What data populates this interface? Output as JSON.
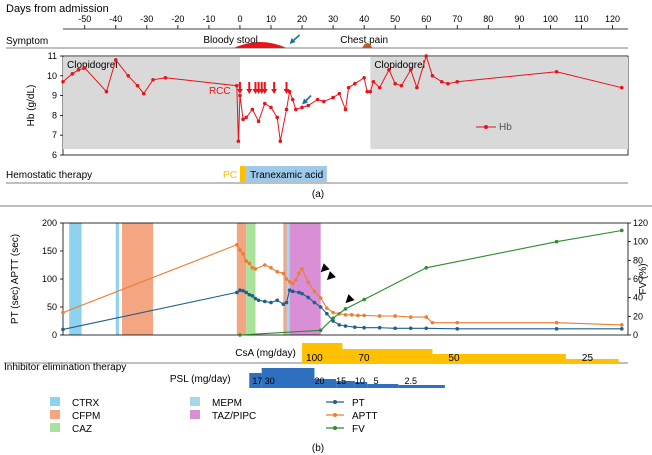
{
  "figure": {
    "top_header": "Days from admission",
    "caption_a": "(a)",
    "caption_b": "(b)"
  },
  "colors": {
    "hb": "#e8141a",
    "hb_shade": "#d9d9d9",
    "pt": "#1f5f8b",
    "aptt": "#ed7d31",
    "fv": "#2e8b2e",
    "ctrx": "#8dd3f0",
    "cfpm": "#f4a582",
    "meppm": "#a6d5ec",
    "caz": "#a8e29b",
    "taz": "#d98fd6",
    "csa": "#ffc000",
    "psl": "#2f6fbf",
    "pc": "#ffc000",
    "txa": "#9ec9ea",
    "arrow": "#1f6fa0",
    "black": "#000000"
  },
  "chart_data": [
    {
      "panel": "a",
      "type": "line",
      "x_axis": {
        "label": "Days from admission",
        "range": [
          -57,
          125
        ],
        "ticks": [
          -50,
          -40,
          -30,
          -20,
          -10,
          0,
          10,
          20,
          30,
          40,
          50,
          60,
          70,
          80,
          90,
          100,
          110,
          120
        ]
      },
      "y_axis": {
        "label": "Hb (g/dL)",
        "range": [
          6,
          11
        ],
        "ticks": [
          6,
          7,
          8,
          9,
          10,
          11
        ]
      },
      "grid": false,
      "symptom_row": {
        "label": "Symptom",
        "events": [
          {
            "text": "Bloody stool",
            "start": -2,
            "end": 15
          },
          {
            "text": "Chest pain",
            "start": 40,
            "end": 42
          }
        ]
      },
      "shaded_regions": [
        {
          "label": "Clopidogrel",
          "start": -57,
          "end": 0
        },
        {
          "label": "Clopidogrel",
          "start": 42,
          "end": 125
        }
      ],
      "rcc_label": "RCC",
      "rcc_days": [
        0,
        3,
        5,
        6,
        7,
        8,
        11,
        15
      ],
      "annotation_arrows": [
        {
          "x": 16,
          "target": "bleeding"
        },
        {
          "x": 20,
          "y": 8.5
        }
      ],
      "series": [
        {
          "name": "Hb",
          "x": [
            -57,
            -54,
            -52,
            -50,
            -43,
            -40,
            -36,
            -33,
            -31,
            -28,
            -24,
            -1,
            -0.5,
            0,
            1,
            2,
            4,
            6,
            8,
            10,
            12,
            13,
            15,
            16,
            17,
            18,
            20,
            22,
            25,
            27,
            30,
            32,
            34,
            35,
            37,
            40,
            41,
            42,
            43,
            45,
            48,
            50,
            52,
            55,
            57,
            60,
            62,
            65,
            67,
            70,
            102,
            123
          ],
          "y": [
            9.7,
            10.1,
            10.3,
            10.4,
            9.2,
            10.8,
            10.0,
            9.5,
            9.1,
            9.8,
            9.9,
            9.5,
            6.7,
            9.0,
            7.8,
            7.9,
            8.3,
            7.7,
            8.6,
            8.4,
            7.9,
            6.7,
            8.3,
            9.2,
            8.8,
            8.3,
            8.4,
            8.5,
            8.8,
            8.7,
            8.9,
            9.1,
            8.3,
            9.4,
            9.6,
            9.9,
            9.2,
            9.2,
            9.7,
            9.4,
            10.3,
            9.6,
            9.5,
            10.3,
            9.4,
            11.0,
            10.0,
            9.7,
            9.6,
            9.7,
            10.2,
            9.4
          ]
        }
      ],
      "legend": {
        "entries": [
          "Hb"
        ],
        "placement": "inside-right"
      },
      "therapy_row": {
        "label": "Hemostatic therapy",
        "items": [
          {
            "text": "PC",
            "start": 0,
            "end": 2
          },
          {
            "text": "Tranexamic acid",
            "start": 2,
            "end": 28
          }
        ]
      }
    },
    {
      "panel": "b",
      "type": "line",
      "x_axis": {
        "range": [
          -57,
          125
        ]
      },
      "y_axis_left": {
        "label": "PT (sec) APTT (sec)",
        "range": [
          0,
          200
        ],
        "ticks": [
          0,
          50,
          100,
          150,
          200
        ]
      },
      "y_axis_right": {
        "label": "FV (%)",
        "range": [
          0,
          120
        ],
        "ticks": [
          0,
          20,
          40,
          60,
          80,
          100,
          120
        ]
      },
      "grid": false,
      "antibiotic_bars": [
        {
          "name": "CTRX",
          "start": -55,
          "end": -51
        },
        {
          "name": "CTRX",
          "start": -40,
          "end": -39
        },
        {
          "name": "CFPM",
          "start": -38,
          "end": -28
        },
        {
          "name": "CFPM",
          "start": -1,
          "end": 2
        },
        {
          "name": "CAZ",
          "start": 2,
          "end": 5
        },
        {
          "name": "CFPM",
          "start": 14,
          "end": 15
        },
        {
          "name": "MEPM",
          "start": 15,
          "end": 16
        },
        {
          "name": "TAZ/PIPC",
          "start": 16,
          "end": 26
        }
      ],
      "annotation_arrowheads": [
        {
          "x": 26,
          "y": 112
        },
        {
          "x": 28,
          "y": 98
        },
        {
          "x": 34,
          "y": 57
        }
      ],
      "series": [
        {
          "name": "PT",
          "axis": "left",
          "x": [
            -57,
            -1,
            0,
            1,
            2,
            3,
            4,
            5,
            6,
            8,
            10,
            12,
            14,
            15,
            16,
            17,
            19,
            20,
            22,
            24,
            26,
            28,
            30,
            32,
            34,
            37,
            40,
            45,
            50,
            55,
            60,
            70,
            102,
            123
          ],
          "y": [
            10,
            76,
            80,
            79,
            76,
            72,
            70,
            65,
            62,
            60,
            58,
            62,
            55,
            58,
            80,
            78,
            76,
            74,
            67,
            58,
            50,
            38,
            25,
            18,
            16,
            14,
            13,
            13,
            12,
            12,
            12,
            11,
            11,
            11
          ]
        },
        {
          "name": "APTT",
          "axis": "left",
          "x": [
            -57,
            -1,
            0,
            1,
            2,
            3,
            4,
            5,
            8,
            10,
            12,
            14,
            15,
            16,
            17,
            18,
            19,
            20,
            22,
            24,
            26,
            28,
            30,
            32,
            34,
            36,
            38,
            40,
            45,
            50,
            55,
            60,
            62,
            70,
            102,
            123
          ],
          "y": [
            40,
            161,
            152,
            145,
            132,
            128,
            120,
            118,
            125,
            120,
            113,
            110,
            100,
            95,
            92,
            98,
            110,
            118,
            94,
            78,
            66,
            48,
            40,
            38,
            36,
            36,
            35,
            35,
            34,
            34,
            32,
            32,
            22,
            22,
            22,
            18
          ]
        },
        {
          "name": "FV",
          "axis": "right",
          "x": [
            0,
            26,
            30,
            34,
            40,
            60,
            102,
            123
          ],
          "y": [
            0,
            5,
            18,
            28,
            38,
            72,
            100,
            112
          ]
        }
      ],
      "legend_entries": [
        "CTRX",
        "MEPM",
        "PT",
        "CFPM",
        "TAZ/PIPC",
        "APTT",
        "CAZ",
        "FV"
      ],
      "inhibitor_label": "Inhibitor elimination therapy",
      "csa": {
        "label": "CsA (mg/day)",
        "segments": [
          {
            "dose": "100",
            "start": 20,
            "end": 33
          },
          {
            "dose": "70",
            "start": 33,
            "end": 62
          },
          {
            "dose": "50",
            "start": 62,
            "end": 105
          },
          {
            "dose": "25",
            "start": 105,
            "end": 122
          }
        ]
      },
      "psl": {
        "label": "PSL (mg/day)",
        "segments": [
          {
            "dose": "17",
            "start": 3,
            "end": 7
          },
          {
            "dose": "30",
            "start": 7,
            "end": 24
          },
          {
            "dose": "20",
            "start": 24,
            "end": 31
          },
          {
            "dose": "15",
            "start": 31,
            "end": 37
          },
          {
            "dose": "10",
            "start": 37,
            "end": 41
          },
          {
            "dose": "5",
            "start": 41,
            "end": 51
          },
          {
            "dose": "2.5",
            "start": 51,
            "end": 66
          }
        ]
      }
    }
  ]
}
